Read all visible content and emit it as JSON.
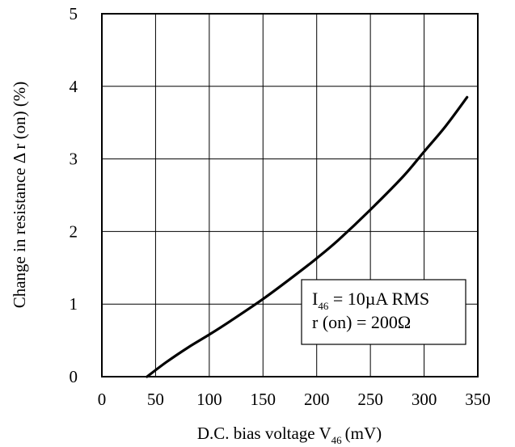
{
  "chart_data": {
    "type": "line",
    "title": "",
    "xlabel": {
      "main": "D.C. bias voltage V",
      "subscript": "46",
      "unit": "(mV)"
    },
    "ylabel": "Change in resistance  Δ r (on)  (%)",
    "xlim": [
      0,
      350
    ],
    "ylim": [
      0,
      5
    ],
    "xticks": [
      "0",
      "50",
      "100",
      "150",
      "200",
      "250",
      "300",
      "350"
    ],
    "yticks": [
      "0",
      "1",
      "2",
      "3",
      "4",
      "5"
    ],
    "grid": true,
    "series": [
      {
        "x": [
          42,
          60,
          80,
          100,
          120,
          150,
          180,
          200,
          220,
          250,
          280,
          300,
          320,
          340
        ],
        "y": [
          0.0,
          0.2,
          0.4,
          0.58,
          0.77,
          1.07,
          1.4,
          1.63,
          1.88,
          2.3,
          2.75,
          3.1,
          3.45,
          3.85
        ]
      }
    ],
    "legend": {
      "placement": "lower-right",
      "line1": {
        "symbol": "I",
        "subscript": "46",
        "text": " = 10µA RMS"
      },
      "line2": "r (on) = 200Ω"
    }
  }
}
